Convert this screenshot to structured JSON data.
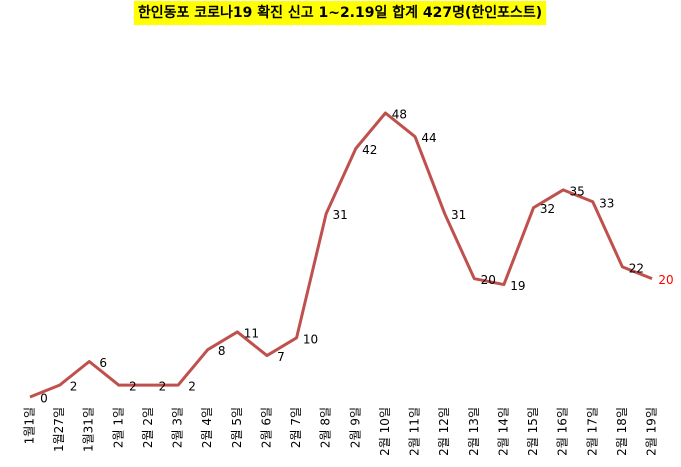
{
  "chart_data": {
    "type": "line",
    "title": "한인동포 코로나19 확진 신고 1~2.19일 합계 427명(한인포스트)",
    "title_background": "#ffff00",
    "categories": [
      "1월1일",
      "1월27일",
      "1월31일",
      "2월 1일",
      "2월 2일",
      "2월 3일",
      "2월 4일",
      "2월 5일",
      "2월 6일",
      "2월 7일",
      "2월 8일",
      "2월 9일",
      "2월 10일",
      "2월 11일",
      "2월 12일",
      "2월 13일",
      "2월 14일",
      "2월 15일",
      "2월 16일",
      "2월 17일",
      "2월 18일",
      "2월 19일"
    ],
    "values": [
      0,
      2,
      6,
      2,
      2,
      2,
      8,
      11,
      7,
      10,
      31,
      42,
      48,
      44,
      31,
      20,
      19,
      32,
      35,
      33,
      22,
      20
    ],
    "color": "#c0504d",
    "highlight_color": "#ff0000",
    "grid": false
  }
}
